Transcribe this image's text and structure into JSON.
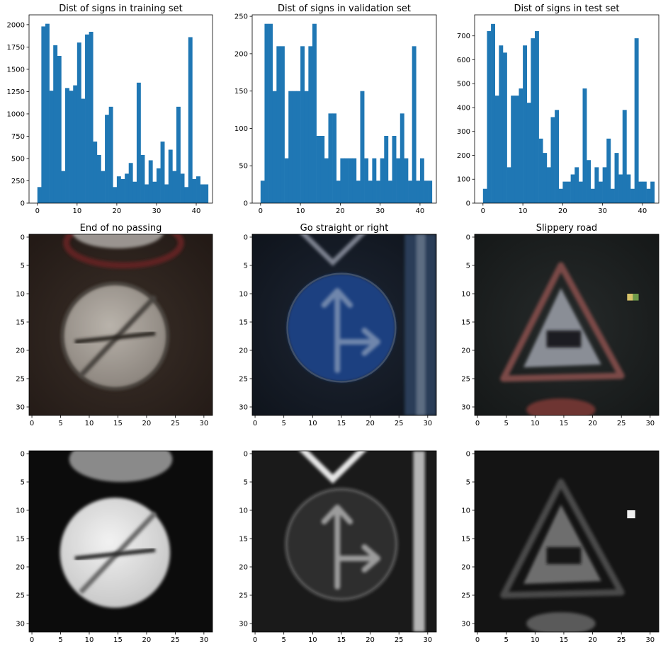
{
  "chart_data": [
    {
      "type": "bar",
      "title": "Dist of signs in training set",
      "xlabel": "",
      "ylabel": "",
      "xlim": [
        -2.1,
        44.1
      ],
      "ylim": [
        0,
        2110
      ],
      "x_ticks": [
        0,
        10,
        20,
        30,
        40
      ],
      "y_ticks": [
        0,
        250,
        500,
        750,
        1000,
        1250,
        1500,
        1750,
        2000
      ],
      "bin_start": 0,
      "bin_width": 1,
      "values": [
        180,
        1980,
        2010,
        1260,
        1770,
        1650,
        360,
        1290,
        1260,
        1320,
        1800,
        1170,
        1890,
        1920,
        690,
        540,
        360,
        990,
        1080,
        180,
        300,
        270,
        330,
        450,
        240,
        1350,
        540,
        210,
        480,
        240,
        390,
        690,
        210,
        599,
        360,
        1080,
        330,
        180,
        1860,
        270,
        300,
        210,
        210
      ],
      "color": "#1f77b4"
    },
    {
      "type": "bar",
      "title": "Dist of signs in validation set",
      "xlabel": "",
      "ylabel": "",
      "xlim": [
        -2.1,
        44.1
      ],
      "ylim": [
        0,
        252
      ],
      "x_ticks": [
        0,
        10,
        20,
        30,
        40
      ],
      "y_ticks": [
        0,
        50,
        100,
        150,
        200,
        250
      ],
      "bin_start": 0,
      "bin_width": 1,
      "values": [
        30,
        240,
        240,
        150,
        210,
        210,
        60,
        150,
        150,
        150,
        210,
        150,
        210,
        240,
        90,
        90,
        60,
        120,
        120,
        30,
        60,
        60,
        60,
        60,
        30,
        150,
        60,
        30,
        60,
        30,
        60,
        90,
        30,
        90,
        60,
        120,
        60,
        30,
        210,
        30,
        60,
        30,
        30
      ],
      "color": "#1f77b4"
    },
    {
      "type": "bar",
      "title": "Dist of signs in test set",
      "xlabel": "",
      "ylabel": "",
      "xlim": [
        -2.1,
        44.1
      ],
      "ylim": [
        0,
        788
      ],
      "x_ticks": [
        0,
        10,
        20,
        30,
        40
      ],
      "y_ticks": [
        0,
        100,
        200,
        300,
        400,
        500,
        600,
        700
      ],
      "bin_start": 0,
      "bin_width": 1,
      "values": [
        60,
        720,
        750,
        450,
        660,
        630,
        150,
        450,
        450,
        480,
        660,
        420,
        690,
        720,
        270,
        210,
        150,
        360,
        390,
        60,
        90,
        90,
        120,
        150,
        90,
        480,
        180,
        60,
        150,
        90,
        150,
        270,
        60,
        210,
        120,
        390,
        120,
        60,
        690,
        90,
        90,
        60,
        90
      ],
      "color": "#1f77b4"
    },
    {
      "type": "image",
      "title": "End of no passing",
      "xlim": [
        -0.5,
        31.5
      ],
      "ylim": [
        31.5,
        -0.5
      ],
      "x_ticks": [
        0,
        5,
        10,
        15,
        20,
        25,
        30
      ],
      "y_ticks": [
        0,
        5,
        10,
        15,
        20,
        25,
        30
      ]
    },
    {
      "type": "image",
      "title": "Go straight or right",
      "xlim": [
        -0.5,
        31.5
      ],
      "ylim": [
        31.5,
        -0.5
      ],
      "x_ticks": [
        0,
        5,
        10,
        15,
        20,
        25,
        30
      ],
      "y_ticks": [
        0,
        5,
        10,
        15,
        20,
        25,
        30
      ]
    },
    {
      "type": "image",
      "title": "Slippery road",
      "xlim": [
        -0.5,
        31.5
      ],
      "ylim": [
        31.5,
        -0.5
      ],
      "x_ticks": [
        0,
        5,
        10,
        15,
        20,
        25,
        30
      ],
      "y_ticks": [
        0,
        5,
        10,
        15,
        20,
        25,
        30
      ]
    },
    {
      "type": "image",
      "title": "",
      "xlim": [
        -0.5,
        31.5
      ],
      "ylim": [
        31.5,
        -0.5
      ],
      "x_ticks": [
        0,
        5,
        10,
        15,
        20,
        25,
        30
      ],
      "y_ticks": [
        0,
        5,
        10,
        15,
        20,
        25,
        30
      ]
    },
    {
      "type": "image",
      "title": "",
      "xlim": [
        -0.5,
        31.5
      ],
      "ylim": [
        31.5,
        -0.5
      ],
      "x_ticks": [
        0,
        5,
        10,
        15,
        20,
        25,
        30
      ],
      "y_ticks": [
        0,
        5,
        10,
        15,
        20,
        25,
        30
      ]
    },
    {
      "type": "image",
      "title": "",
      "xlim": [
        -0.5,
        31.5
      ],
      "ylim": [
        31.5,
        -0.5
      ],
      "x_ticks": [
        0,
        5,
        10,
        15,
        20,
        25,
        30
      ],
      "y_ticks": [
        0,
        5,
        10,
        15,
        20,
        25,
        30
      ]
    }
  ]
}
